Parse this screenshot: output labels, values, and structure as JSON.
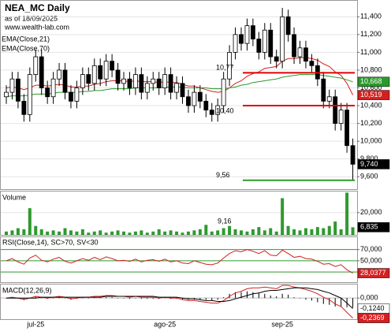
{
  "chart_data": [
    {
      "type": "candlestick",
      "title": "NEA_MC Daily",
      "subtitle": "as of 18/09/2025",
      "source": "www.wealth-lab.com",
      "categories": [
        null,
        null,
        null,
        null,
        null,
        "jul-25",
        null,
        null,
        null,
        null,
        null,
        null,
        null,
        null,
        null,
        null,
        null,
        null,
        null,
        null,
        null,
        null,
        null,
        null,
        null,
        null,
        null,
        "ago-25",
        null,
        null,
        null,
        null,
        null,
        null,
        null,
        null,
        null,
        null,
        null,
        null,
        null,
        null,
        null,
        null,
        null,
        null,
        null,
        "sep-25",
        null,
        null,
        null,
        null,
        null,
        null,
        null,
        null,
        null,
        null,
        null,
        null
      ],
      "open": [
        10.5,
        10.55,
        10.7,
        10.45,
        10.3,
        10.75,
        10.95,
        10.6,
        10.5,
        10.7,
        10.8,
        10.55,
        10.45,
        10.6,
        10.75,
        10.65,
        10.85,
        10.7,
        10.9,
        10.8,
        10.65,
        10.7,
        10.6,
        10.75,
        10.55,
        10.65,
        10.7,
        10.6,
        10.75,
        10.55,
        10.65,
        10.5,
        10.4,
        10.55,
        10.45,
        10.35,
        10.3,
        10.4,
        10.7,
        11.0,
        11.2,
        11.1,
        11.3,
        11.15,
        11.0,
        11.25,
        10.95,
        10.9,
        11.4,
        11.2,
        10.95,
        11.05,
        10.9,
        10.85,
        10.7,
        10.45,
        10.5,
        10.2,
        10.35,
        9.95
      ],
      "high": [
        10.63,
        10.78,
        10.78,
        10.53,
        10.83,
        11.03,
        11.03,
        10.68,
        10.78,
        10.88,
        10.88,
        10.63,
        10.68,
        10.83,
        10.83,
        10.93,
        10.93,
        10.98,
        10.98,
        10.88,
        10.78,
        10.78,
        10.83,
        10.83,
        10.73,
        10.78,
        10.78,
        10.83,
        10.83,
        10.73,
        10.73,
        10.58,
        10.63,
        10.63,
        10.53,
        10.43,
        10.48,
        10.78,
        11.08,
        11.28,
        11.28,
        11.38,
        11.38,
        11.23,
        11.33,
        11.33,
        11.03,
        11.5,
        11.48,
        11.28,
        11.13,
        11.13,
        10.98,
        10.93,
        10.78,
        10.58,
        10.58,
        10.43,
        10.43,
        10.03
      ],
      "low": [
        10.42,
        10.47,
        10.37,
        10.22,
        10.22,
        10.67,
        10.52,
        10.42,
        10.42,
        10.62,
        10.47,
        10.37,
        10.37,
        10.52,
        10.57,
        10.57,
        10.62,
        10.62,
        10.72,
        10.57,
        10.57,
        10.52,
        10.52,
        10.47,
        10.47,
        10.57,
        10.52,
        10.52,
        10.47,
        10.47,
        10.42,
        10.32,
        10.32,
        10.37,
        10.27,
        10.22,
        10.22,
        10.32,
        10.62,
        10.92,
        11.02,
        11.02,
        11.07,
        10.92,
        10.92,
        10.87,
        10.82,
        10.82,
        11.12,
        10.87,
        10.87,
        10.82,
        10.77,
        10.62,
        10.37,
        10.37,
        10.12,
        10.12,
        9.87,
        9.56
      ],
      "close": [
        10.55,
        10.7,
        10.45,
        10.3,
        10.75,
        10.95,
        10.6,
        10.5,
        10.7,
        10.8,
        10.55,
        10.45,
        10.6,
        10.75,
        10.65,
        10.85,
        10.7,
        10.9,
        10.8,
        10.65,
        10.7,
        10.6,
        10.75,
        10.55,
        10.65,
        10.7,
        10.6,
        10.75,
        10.55,
        10.65,
        10.5,
        10.4,
        10.55,
        10.45,
        10.35,
        10.3,
        10.4,
        10.7,
        11.0,
        11.2,
        11.1,
        11.3,
        11.15,
        11.0,
        11.25,
        10.95,
        10.9,
        11.4,
        11.2,
        10.95,
        11.05,
        10.9,
        10.85,
        10.7,
        10.45,
        10.5,
        10.2,
        10.35,
        9.95,
        9.74
      ],
      "last_label": "9,740",
      "up_color": "#ffffff",
      "down_color": "#000000",
      "series": [
        {
          "name": "EMA(Close,21)",
          "color": "#d42020",
          "last_label": "10,519",
          "values": [
            10.6,
            10.61,
            10.6,
            10.58,
            10.6,
            10.63,
            10.63,
            10.62,
            10.63,
            10.64,
            10.63,
            10.61,
            10.61,
            10.62,
            10.62,
            10.64,
            10.65,
            10.67,
            10.68,
            10.68,
            10.68,
            10.67,
            10.68,
            10.67,
            10.67,
            10.67,
            10.66,
            10.67,
            10.66,
            10.66,
            10.64,
            10.62,
            10.62,
            10.6,
            10.58,
            10.56,
            10.55,
            10.56,
            10.6,
            10.65,
            10.68,
            10.73,
            10.76,
            10.78,
            10.82,
            10.83,
            10.84,
            10.9,
            10.93,
            10.93,
            10.94,
            10.94,
            10.93,
            10.91,
            10.87,
            10.84,
            10.78,
            10.74,
            10.65,
            10.519
          ]
        },
        {
          "name": "EMA(Close,70)",
          "color": "#2a9a2a",
          "last_label": "10,668",
          "values": [
            10.5,
            10.51,
            10.51,
            10.51,
            10.52,
            10.53,
            10.53,
            10.53,
            10.54,
            10.55,
            10.55,
            10.55,
            10.55,
            10.56,
            10.56,
            10.57,
            10.57,
            10.58,
            10.59,
            10.59,
            10.59,
            10.59,
            10.6,
            10.6,
            10.6,
            10.6,
            10.6,
            10.61,
            10.61,
            10.61,
            10.61,
            10.6,
            10.6,
            10.6,
            10.6,
            10.59,
            10.59,
            10.59,
            10.6,
            10.61,
            10.63,
            10.64,
            10.66,
            10.67,
            10.68,
            10.69,
            10.7,
            10.72,
            10.73,
            10.74,
            10.75,
            10.75,
            10.75,
            10.75,
            10.74,
            10.73,
            10.72,
            10.71,
            10.69,
            10.668
          ]
        }
      ],
      "levels": [
        {
          "value": 10.77,
          "label": "10,77",
          "color": "#e00000"
        },
        {
          "value": 10.4,
          "label": "10,40",
          "color": "#e00000"
        },
        {
          "value": 9.56,
          "label": "9,56",
          "color": "#2a9a2a"
        }
      ],
      "ylim": [
        9.46,
        11.58
      ],
      "yticks": [
        {
          "value": 9.6,
          "label": "9,600"
        },
        {
          "value": 9.8,
          "label": "9,800"
        },
        {
          "value": 10.0,
          "label": "10,000"
        },
        {
          "value": 10.2,
          "label": "10,200"
        },
        {
          "value": 10.4,
          "label": "10,400"
        },
        {
          "value": 10.6,
          "label": "10,600"
        },
        {
          "value": 10.8,
          "label": "10,800"
        },
        {
          "value": 11.0,
          "label": "11,000"
        },
        {
          "value": 11.2,
          "label": "11,200"
        },
        {
          "value": 11.4,
          "label": "11,400"
        }
      ]
    },
    {
      "type": "bar",
      "title": "Volume",
      "color": "#2e9a2e",
      "annotation": "9,16",
      "last_label": "6,835",
      "values": [
        3000,
        4000,
        6000,
        5000,
        24000,
        8000,
        5000,
        3000,
        4000,
        3000,
        6000,
        4000,
        3000,
        5000,
        2000,
        3000,
        4000,
        2000,
        3000,
        4000,
        3000,
        2000,
        3000,
        4000,
        2000,
        3000,
        5000,
        3000,
        4000,
        3000,
        2000,
        3000,
        4000,
        5000,
        9000,
        3000,
        4000,
        6000,
        8000,
        5000,
        4000,
        3000,
        5000,
        7000,
        4000,
        6000,
        3000,
        33000,
        8000,
        5000,
        4000,
        6000,
        5000,
        7000,
        6000,
        8000,
        12000,
        5000,
        38000,
        6835
      ],
      "ylim": [
        0,
        39000
      ],
      "yticks": [
        {
          "value": 20000,
          "label": "20,000"
        }
      ]
    },
    {
      "type": "line",
      "title": "RSI(Close,14), SC>70, SV<30",
      "grid_color": "#2e9a2e",
      "series": [
        {
          "color": "#d42020",
          "last_label": "28,0377",
          "values": [
            50,
            54,
            48,
            44,
            55,
            60,
            51,
            48,
            53,
            56,
            49,
            46,
            50,
            54,
            51,
            56,
            52,
            57,
            54,
            50,
            51,
            49,
            53,
            48,
            51,
            52,
            49,
            53,
            48,
            50,
            46,
            45,
            50,
            47,
            44,
            43,
            46,
            55,
            63,
            68,
            66,
            70,
            67,
            63,
            68,
            60,
            59,
            69,
            63,
            56,
            58,
            54,
            53,
            49,
            44,
            45,
            40,
            43,
            34,
            28.0377
          ]
        }
      ],
      "ylim": [
        12,
        92
      ],
      "yticks": [
        {
          "value": 30,
          "label": "30,000"
        },
        {
          "value": 50,
          "label": "50,000"
        },
        {
          "value": 70,
          "label": "70,000"
        }
      ]
    },
    {
      "type": "line",
      "title": "MACD(12,26,9)",
      "grid_color": "#bbbbbb",
      "series": [
        {
          "kind": "histogram",
          "color": "#000000",
          "values": [
            0,
            0.01,
            0,
            -0.02,
            0,
            0.02,
            0,
            -0.01,
            0,
            0.01,
            0,
            -0.02,
            -0.01,
            0,
            0,
            0.01,
            0.01,
            0.01,
            0.01,
            0,
            0,
            -0.01,
            0,
            -0.01,
            -0.01,
            -0.01,
            -0.01,
            0,
            -0.01,
            -0.01,
            -0.02,
            -0.02,
            -0.02,
            -0.02,
            -0.02,
            -0.03,
            -0.02,
            0.01,
            0.05,
            0.07,
            0.07,
            0.08,
            0.07,
            0.06,
            0.05,
            0.03,
            0.02,
            0.05,
            0.04,
            0.01,
            0,
            -0.02,
            -0.03,
            -0.05,
            -0.07,
            -0.08,
            -0.1,
            -0.1,
            -0.11,
            -0.1129
          ]
        },
        {
          "color": "#d42020",
          "last_label": "-0,2369",
          "values": [
            0,
            0.01,
            0,
            -0.02,
            0,
            0.02,
            0.01,
            0,
            0.01,
            0.02,
            0.01,
            -0.01,
            0,
            0.01,
            0.01,
            0.02,
            0.02,
            0.03,
            0.03,
            0.02,
            0.02,
            0.01,
            0.02,
            0.01,
            0.01,
            0.01,
            0,
            0.01,
            0,
            0,
            -0.02,
            -0.03,
            -0.03,
            -0.04,
            -0.05,
            -0.06,
            -0.06,
            -0.03,
            0.02,
            0.06,
            0.08,
            0.11,
            0.12,
            0.12,
            0.13,
            0.12,
            0.11,
            0.15,
            0.15,
            0.13,
            0.12,
            0.1,
            0.08,
            0.05,
            0.01,
            -0.02,
            -0.07,
            -0.1,
            -0.17,
            -0.2369
          ]
        },
        {
          "color": "#000000",
          "label_fill": "#ffffff",
          "last_label": "-0,1240",
          "values": [
            0,
            0,
            0,
            0,
            0,
            0,
            0.01,
            0.01,
            0.01,
            0.01,
            0.01,
            0.01,
            0.01,
            0.01,
            0.01,
            0.01,
            0.01,
            0.02,
            0.02,
            0.02,
            0.02,
            0.02,
            0.02,
            0.02,
            0.02,
            0.02,
            0.01,
            0.01,
            0.01,
            0.01,
            0,
            -0.01,
            -0.01,
            -0.02,
            -0.03,
            -0.03,
            -0.04,
            -0.04,
            -0.03,
            -0.01,
            0.01,
            0.03,
            0.05,
            0.06,
            0.08,
            0.09,
            0.09,
            0.1,
            0.11,
            0.12,
            0.12,
            0.12,
            0.11,
            0.1,
            0.08,
            0.06,
            0.03,
            0,
            -0.06,
            -0.124
          ]
        }
      ],
      "ylim": [
        -0.25,
        0.16
      ],
      "yticks": [
        {
          "value": 0,
          "label": "0,000"
        }
      ]
    }
  ]
}
